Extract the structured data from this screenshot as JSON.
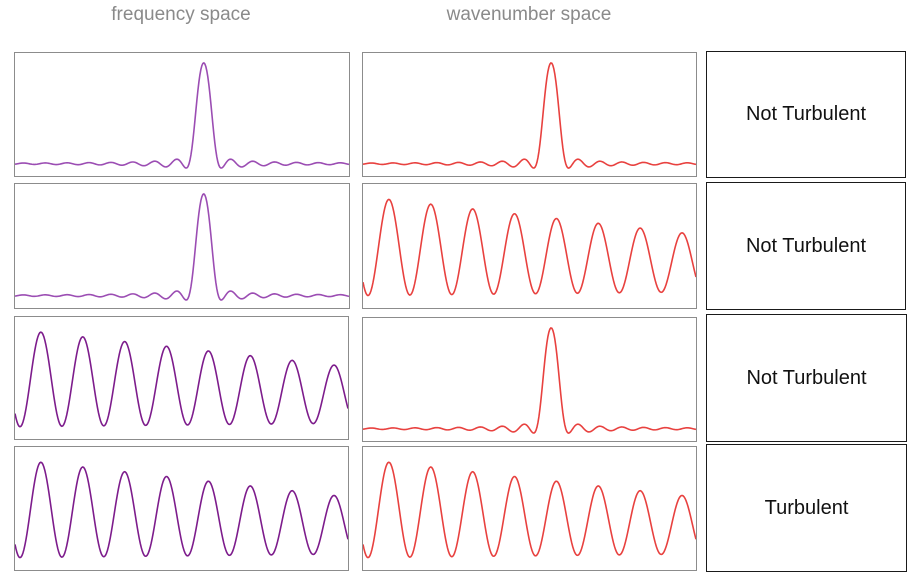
{
  "headers": {
    "frequency": "frequency space",
    "wavenumber": "wavenumber space"
  },
  "colors": {
    "frequency_line": "#9b4db3",
    "frequency_line_dark": "#7d1c8c",
    "wavenumber_line": "#e8413f",
    "panel_border": "#8c8c8c",
    "label_border": "#1a1a1a"
  },
  "rows": [
    {
      "frequency": "peak",
      "wavenumber": "peak",
      "result": "Not Turbulent"
    },
    {
      "frequency": "peak",
      "wavenumber": "oscillating",
      "result": "Not Turbulent"
    },
    {
      "frequency": "oscillating",
      "wavenumber": "peak",
      "result": "Not Turbulent"
    },
    {
      "frequency": "oscillating",
      "wavenumber": "oscillating",
      "result": "Turbulent"
    }
  ]
}
